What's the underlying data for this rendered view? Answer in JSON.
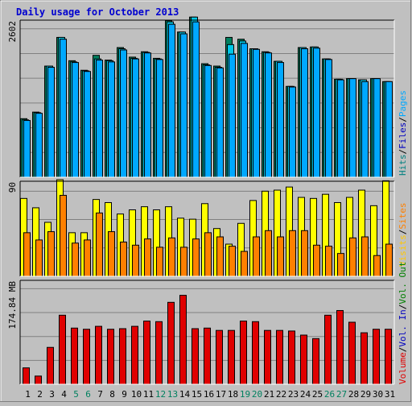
{
  "title": "Daily usage for October 2013",
  "colors": {
    "background": "#C0C0C0",
    "plot_bg": "#C0C0C0",
    "grid": "#808080",
    "title": "#0000D0",
    "hits": "#00805F",
    "files": "#00C8E8",
    "pages": "#00A8FF",
    "visits": "#FFFF00",
    "sites": "#FF8000",
    "kbytes": "#E00000",
    "weekend_day": "#00805F",
    "weekday_day": "#000000"
  },
  "legend_top": [
    {
      "label": "Hits",
      "color": "#008080"
    },
    {
      "label": "/",
      "color": "#000000"
    },
    {
      "label": "Files",
      "color": "#0000C0"
    },
    {
      "label": "/",
      "color": "#000000"
    },
    {
      "label": "Pages",
      "color": "#00A8FF"
    }
  ],
  "legend_mid": [
    {
      "label": "Visits",
      "color": "#FFC800"
    },
    {
      "label": "/",
      "color": "#000000"
    },
    {
      "label": "Sites",
      "color": "#FF8000"
    }
  ],
  "legend_bottom": [
    {
      "label": "Volume",
      "color": "#E00000"
    },
    {
      "label": "/",
      "color": "#000000"
    },
    {
      "label": "Vol. In",
      "color": "#0000C0"
    },
    {
      "label": "/",
      "color": "#000000"
    },
    {
      "label": "Vol. Out",
      "color": "#008000"
    }
  ],
  "chart_data": [
    {
      "type": "bar",
      "name": "hits-files-pages",
      "ylabel": "2602",
      "ylim": [
        0,
        2602
      ],
      "categories": [
        "1",
        "2",
        "3",
        "4",
        "5",
        "6",
        "7",
        "8",
        "9",
        "10",
        "11",
        "12",
        "13",
        "14",
        "15",
        "16",
        "17",
        "18",
        "19",
        "20",
        "21",
        "22",
        "23",
        "24",
        "25",
        "26",
        "27",
        "28",
        "29",
        "30",
        "31"
      ],
      "weekend": [
        "5",
        "6",
        "12",
        "13",
        "19",
        "20",
        "26",
        "27"
      ],
      "series": [
        {
          "name": "Hits",
          "values": [
            980,
            1090,
            1860,
            2340,
            1950,
            1790,
            2040,
            1960,
            2170,
            2010,
            2100,
            1990,
            2620,
            2430,
            2680,
            1900,
            1860,
            2340,
            2310,
            2150,
            2100,
            1940,
            1520,
            2170,
            2180,
            1980,
            1640,
            1650,
            1630,
            1650,
            1600
          ]
        },
        {
          "name": "Files",
          "values": [
            960,
            1080,
            1860,
            2340,
            1930,
            1780,
            1980,
            1950,
            2150,
            1990,
            2090,
            1980,
            2600,
            2430,
            2680,
            1880,
            1840,
            2220,
            2280,
            2150,
            2090,
            1940,
            1520,
            2170,
            2180,
            1980,
            1640,
            1650,
            1630,
            1650,
            1600
          ]
        },
        {
          "name": "Pages",
          "values": [
            950,
            1070,
            1840,
            2310,
            1920,
            1770,
            1960,
            1930,
            2130,
            1980,
            2080,
            1970,
            2560,
            2400,
            2600,
            1870,
            1830,
            2060,
            2240,
            2140,
            2080,
            1920,
            1510,
            2150,
            2160,
            1970,
            1630,
            1650,
            1600,
            1650,
            1600
          ]
        }
      ]
    },
    {
      "type": "bar",
      "name": "visits-sites",
      "ylabel": "90",
      "ylim": [
        0,
        90
      ],
      "categories": [
        "1",
        "2",
        "3",
        "4",
        "5",
        "6",
        "7",
        "8",
        "9",
        "10",
        "11",
        "12",
        "13",
        "14",
        "15",
        "16",
        "17",
        "18",
        "19",
        "20",
        "21",
        "22",
        "23",
        "24",
        "25",
        "26",
        "27",
        "28",
        "29",
        "30",
        "31"
      ],
      "series": [
        {
          "name": "Visits",
          "values": [
            75,
            66,
            52,
            93,
            42,
            42,
            74,
            71,
            60,
            64,
            67,
            64,
            67,
            56,
            55,
            70,
            46,
            31,
            51,
            73,
            82,
            83,
            86,
            76,
            75,
            79,
            71,
            76,
            83,
            68,
            92
          ]
        },
        {
          "name": "Sites",
          "values": [
            42,
            35,
            43,
            78,
            32,
            35,
            61,
            43,
            33,
            30,
            36,
            28,
            37,
            28,
            36,
            42,
            38,
            29,
            24,
            38,
            44,
            38,
            44,
            44,
            30,
            29,
            22,
            37,
            38,
            20,
            31
          ]
        }
      ]
    },
    {
      "type": "bar",
      "name": "volume",
      "ylabel": "174.84 MB",
      "ylim": [
        0,
        174.84
      ],
      "categories": [
        "1",
        "2",
        "3",
        "4",
        "5",
        "6",
        "7",
        "8",
        "9",
        "10",
        "11",
        "12",
        "13",
        "14",
        "15",
        "16",
        "17",
        "18",
        "19",
        "20",
        "21",
        "22",
        "23",
        "24",
        "25",
        "26",
        "27",
        "28",
        "29",
        "30",
        "31"
      ],
      "series": [
        {
          "name": "Volume",
          "values": [
            28,
            14,
            63,
            118,
            96,
            94,
            99,
            94,
            95,
            99,
            108,
            107,
            140,
            152,
            95,
            96,
            92,
            92,
            108,
            107,
            92,
            92,
            91,
            84,
            78,
            118,
            126,
            106,
            88,
            94,
            94
          ]
        }
      ]
    }
  ]
}
